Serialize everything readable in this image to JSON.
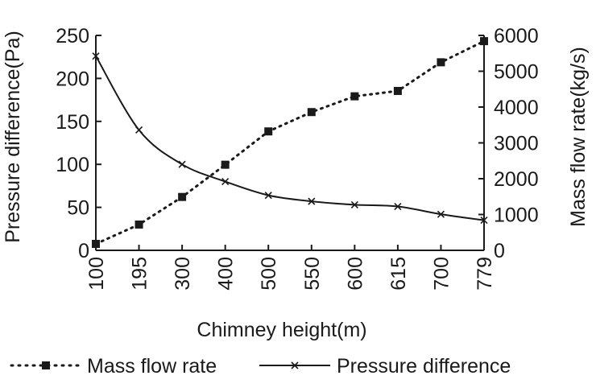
{
  "chart_data": {
    "type": "line",
    "title": "",
    "xlabel": "Chimney height(m)",
    "ylabel_left": "Pressure difference(Pa)",
    "ylabel_right": "Mass flow rate(kg/s)",
    "categories": [
      "100",
      "195",
      "300",
      "400",
      "500",
      "550",
      "600",
      "615",
      "700",
      "779"
    ],
    "y_left": {
      "range": [
        0,
        250
      ],
      "ticks": [
        0,
        50,
        100,
        150,
        200,
        250
      ]
    },
    "y_right": {
      "range": [
        0,
        6000
      ],
      "ticks": [
        0,
        1000,
        2000,
        3000,
        4000,
        5000,
        6000
      ]
    },
    "grid": false,
    "legend_position": "bottom",
    "series": [
      {
        "name": "Mass flow rate",
        "axis": "right",
        "line_style": "dotted",
        "marker": "square",
        "values": [
          180,
          720,
          1490,
          2390,
          3320,
          3860,
          4300,
          4450,
          5250,
          5840
        ]
      },
      {
        "name": "Pressure difference",
        "axis": "left",
        "line_style": "solid",
        "marker": "x",
        "values": [
          226,
          140,
          100,
          80,
          64,
          57,
          53,
          51,
          42,
          35
        ]
      }
    ]
  },
  "colors": {
    "axis": "#1a1a1a",
    "series_mass": "#1a1a1a",
    "series_pressure": "#1a1a1a"
  }
}
